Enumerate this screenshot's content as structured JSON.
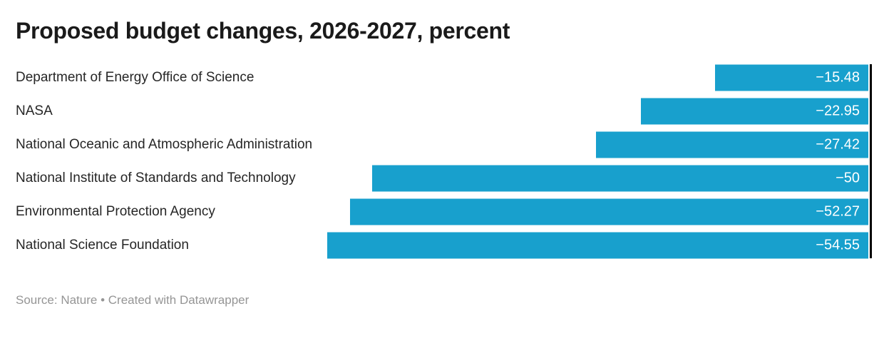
{
  "chart_data": {
    "type": "bar",
    "orientation": "horizontal",
    "title": "Proposed budget changes, 2026-2027, percent",
    "categories": [
      "Department of Energy Office of Science",
      "NASA",
      "National Oceanic and Atmospheric Administration",
      "National Institute of Standards and Technology",
      "Environmental Protection Agency",
      "National Science Foundation"
    ],
    "values": [
      -15.48,
      -22.95,
      -27.42,
      -50,
      -52.27,
      -54.55
    ],
    "value_labels": [
      "−15.48",
      "−22.95",
      "−27.42",
      "−50",
      "−52.27",
      "−54.55"
    ],
    "unit": "percent",
    "xlim": [
      -55,
      0
    ],
    "baseline": 0,
    "grid": false,
    "legend": "none",
    "value_label_position": "inside-end",
    "bar_color": "#18a0cd",
    "axis_color": "#000000",
    "value_label_color": "#ffffff"
  },
  "footer": {
    "source_label": "Source:",
    "source_name": "Nature",
    "separator": "•",
    "credit": "Created with Datawrapper"
  }
}
